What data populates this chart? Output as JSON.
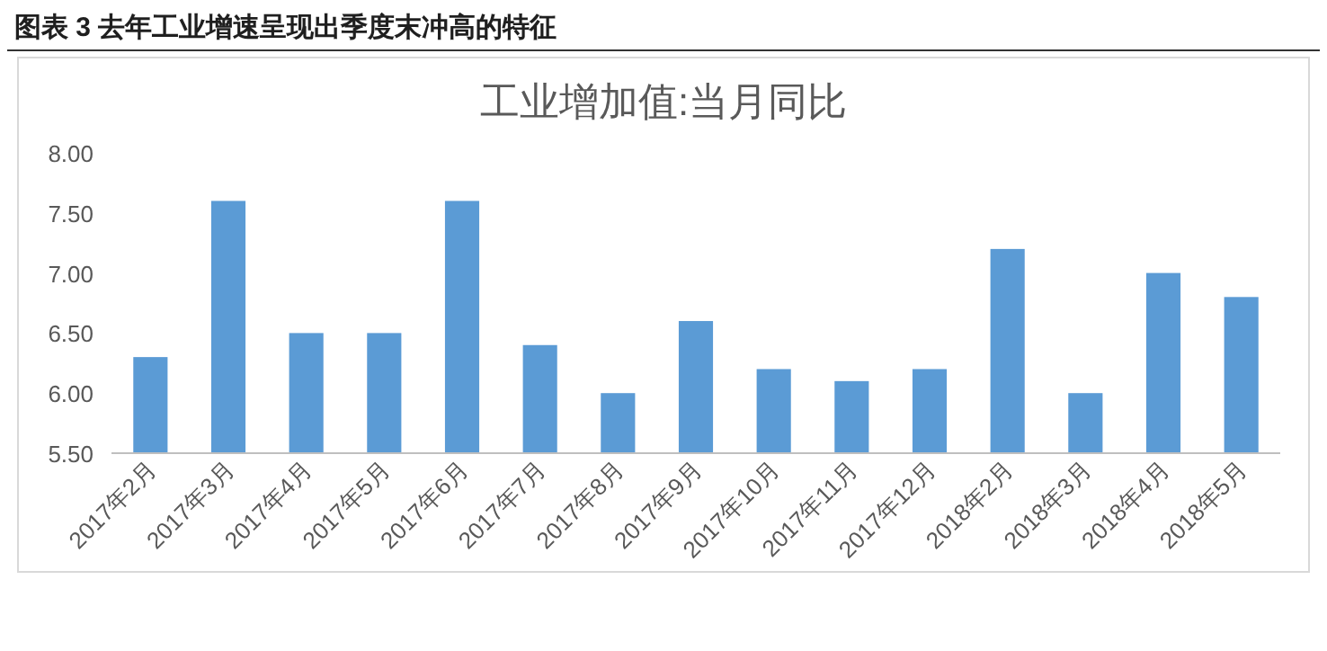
{
  "chart_data": {
    "type": "bar",
    "title": "图表 3   去年工业增速呈现出季度末冲高的特征",
    "subtitle": "工业增加值:当月同比",
    "categories": [
      "2017年2月",
      "2017年3月",
      "2017年4月",
      "2017年5月",
      "2017年6月",
      "2017年7月",
      "2017年8月",
      "2017年9月",
      "2017年10月",
      "2017年11月",
      "2017年12月",
      "2018年2月",
      "2018年3月",
      "2018年4月",
      "2018年5月"
    ],
    "values": [
      6.3,
      7.6,
      6.5,
      6.5,
      7.6,
      6.4,
      6.0,
      6.6,
      6.2,
      6.1,
      6.2,
      7.2,
      6.0,
      7.0,
      6.8
    ],
    "color": "#5b9bd5",
    "ylim": [
      5.5,
      8.0
    ],
    "yticks": [
      {
        "value": 5.5,
        "label": "5.50"
      },
      {
        "value": 6.0,
        "label": "6.00"
      },
      {
        "value": 6.5,
        "label": "6.50"
      },
      {
        "value": 7.0,
        "label": "7.00"
      },
      {
        "value": 7.5,
        "label": "7.50"
      },
      {
        "value": 8.0,
        "label": "8.00"
      }
    ],
    "grid": false
  }
}
